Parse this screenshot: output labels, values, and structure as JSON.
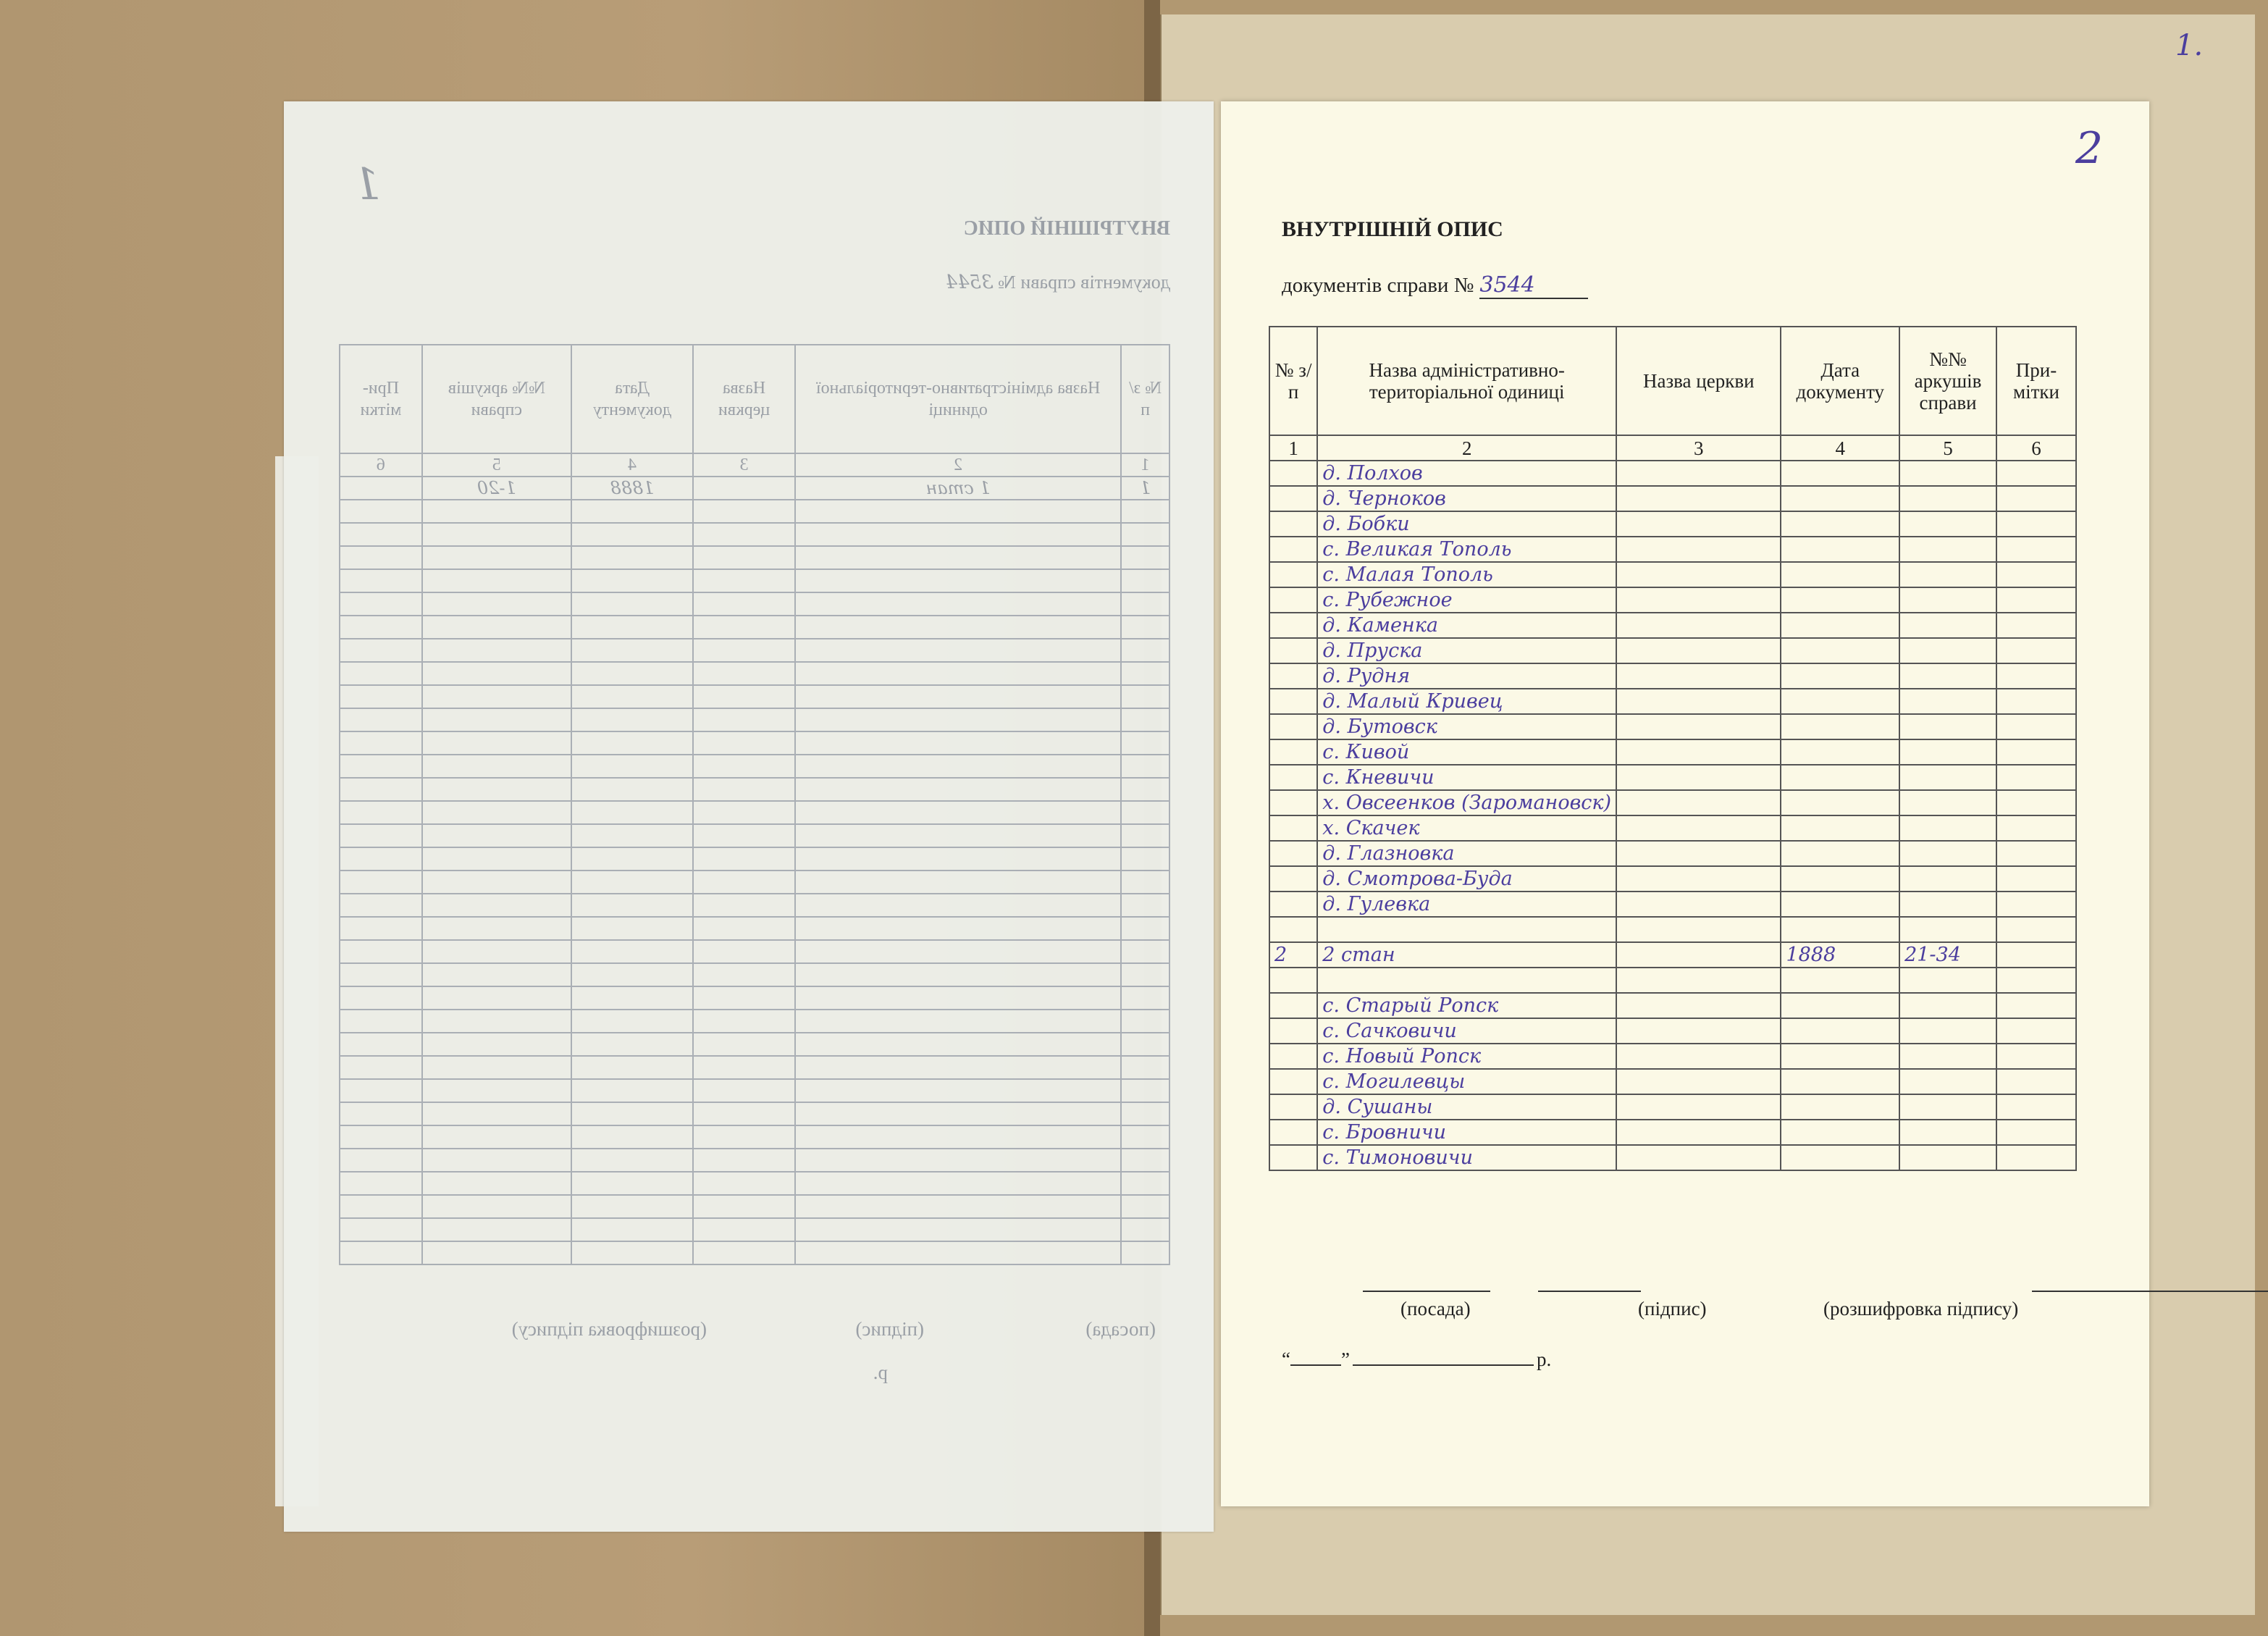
{
  "left_page_mirrored": {
    "title": "ВНУТРІШНІЙ ОПИС",
    "subtitle": "документів справи №",
    "case_number": "3544",
    "page_number": "1",
    "headers": [
      "№ з/п",
      "Назва адміністративно-територіальної одиниці",
      "Назва церкви",
      "Дата документу",
      "№№ аркушів справи",
      "При-мітки"
    ],
    "col_numbers": [
      "1",
      "2",
      "3",
      "4",
      "5",
      "6"
    ],
    "first_row": {
      "num": "1",
      "unit": "1 стан",
      "date": "1888",
      "sheets": "1-20"
    },
    "footer": {
      "position": "(посада)",
      "signature": "(підпис)",
      "decoding": "(розшифровка підпису)",
      "date_suffix": "р."
    }
  },
  "right_page": {
    "page_number": "2",
    "old_page_number": "1.",
    "title": "ВНУТРІШНІЙ ОПИС",
    "subtitle": "документів справи №",
    "case_number": "3544",
    "headers": [
      "№ з/п",
      "Назва адміністративно-територіальної одиниці",
      "Назва церкви",
      "Дата документу",
      "№№ аркушів справи",
      "При-мітки"
    ],
    "col_numbers": [
      "1",
      "2",
      "3",
      "4",
      "5",
      "6"
    ],
    "rows": [
      {
        "num": "",
        "unit": "д. Полхов",
        "church": "",
        "date": "",
        "sheets": "",
        "notes": ""
      },
      {
        "num": "",
        "unit": "д. Черноков",
        "church": "",
        "date": "",
        "sheets": "",
        "notes": ""
      },
      {
        "num": "",
        "unit": "д. Бобки",
        "church": "",
        "date": "",
        "sheets": "",
        "notes": ""
      },
      {
        "num": "",
        "unit": "с. Великая Тополь",
        "church": "",
        "date": "",
        "sheets": "",
        "notes": ""
      },
      {
        "num": "",
        "unit": "с. Малая Тополь",
        "church": "",
        "date": "",
        "sheets": "",
        "notes": ""
      },
      {
        "num": "",
        "unit": "с. Рубежное",
        "church": "",
        "date": "",
        "sheets": "",
        "notes": ""
      },
      {
        "num": "",
        "unit": "д. Каменка",
        "church": "",
        "date": "",
        "sheets": "",
        "notes": ""
      },
      {
        "num": "",
        "unit": "д. Пруска",
        "church": "",
        "date": "",
        "sheets": "",
        "notes": ""
      },
      {
        "num": "",
        "unit": "д. Рудня",
        "church": "",
        "date": "",
        "sheets": "",
        "notes": ""
      },
      {
        "num": "",
        "unit": "д. Малый Кривец",
        "church": "",
        "date": "",
        "sheets": "",
        "notes": ""
      },
      {
        "num": "",
        "unit": "д. Бутовск",
        "church": "",
        "date": "",
        "sheets": "",
        "notes": ""
      },
      {
        "num": "",
        "unit": "с. Кивой",
        "church": "",
        "date": "",
        "sheets": "",
        "notes": ""
      },
      {
        "num": "",
        "unit": "с. Кневичи",
        "church": "",
        "date": "",
        "sheets": "",
        "notes": ""
      },
      {
        "num": "",
        "unit": "х. Овсеенков (Заромановск)",
        "church": "",
        "date": "",
        "sheets": "",
        "notes": ""
      },
      {
        "num": "",
        "unit": "х. Скачек",
        "church": "",
        "date": "",
        "sheets": "",
        "notes": ""
      },
      {
        "num": "",
        "unit": "д. Глазновка",
        "church": "",
        "date": "",
        "sheets": "",
        "notes": ""
      },
      {
        "num": "",
        "unit": "д. Смотрова-Буда",
        "church": "",
        "date": "",
        "sheets": "",
        "notes": ""
      },
      {
        "num": "",
        "unit": "д. Гулевка",
        "church": "",
        "date": "",
        "sheets": "",
        "notes": ""
      },
      {
        "num": "",
        "unit": "",
        "church": "",
        "date": "",
        "sheets": "",
        "notes": ""
      },
      {
        "num": "2",
        "unit": "2 стан",
        "church": "",
        "date": "1888",
        "sheets": "21-34",
        "notes": ""
      },
      {
        "num": "",
        "unit": "",
        "church": "",
        "date": "",
        "sheets": "",
        "notes": ""
      },
      {
        "num": "",
        "unit": "с. Старый Ропск",
        "church": "",
        "date": "",
        "sheets": "",
        "notes": ""
      },
      {
        "num": "",
        "unit": "с. Сачковичи",
        "church": "",
        "date": "",
        "sheets": "",
        "notes": ""
      },
      {
        "num": "",
        "unit": "с. Новый Ропск",
        "church": "",
        "date": "",
        "sheets": "",
        "notes": ""
      },
      {
        "num": "",
        "unit": "с. Могилевцы",
        "church": "",
        "date": "",
        "sheets": "",
        "notes": ""
      },
      {
        "num": "",
        "unit": "д. Сушаны",
        "church": "",
        "date": "",
        "sheets": "",
        "notes": ""
      },
      {
        "num": "",
        "unit": "с. Бровничи",
        "church": "",
        "date": "",
        "sheets": "",
        "notes": ""
      },
      {
        "num": "",
        "unit": "с. Тимоновичи",
        "church": "",
        "date": "",
        "sheets": "",
        "notes": ""
      }
    ],
    "footer": {
      "position": "(посада)",
      "signature": "(підпис)",
      "decoding": "(розшифровка підпису)",
      "date_open": "“",
      "date_close": "”",
      "date_suffix": "р."
    }
  },
  "colors": {
    "ink": "#4b3e9e",
    "paper": "#fbf9e6",
    "cardboard": "#ad946c"
  }
}
